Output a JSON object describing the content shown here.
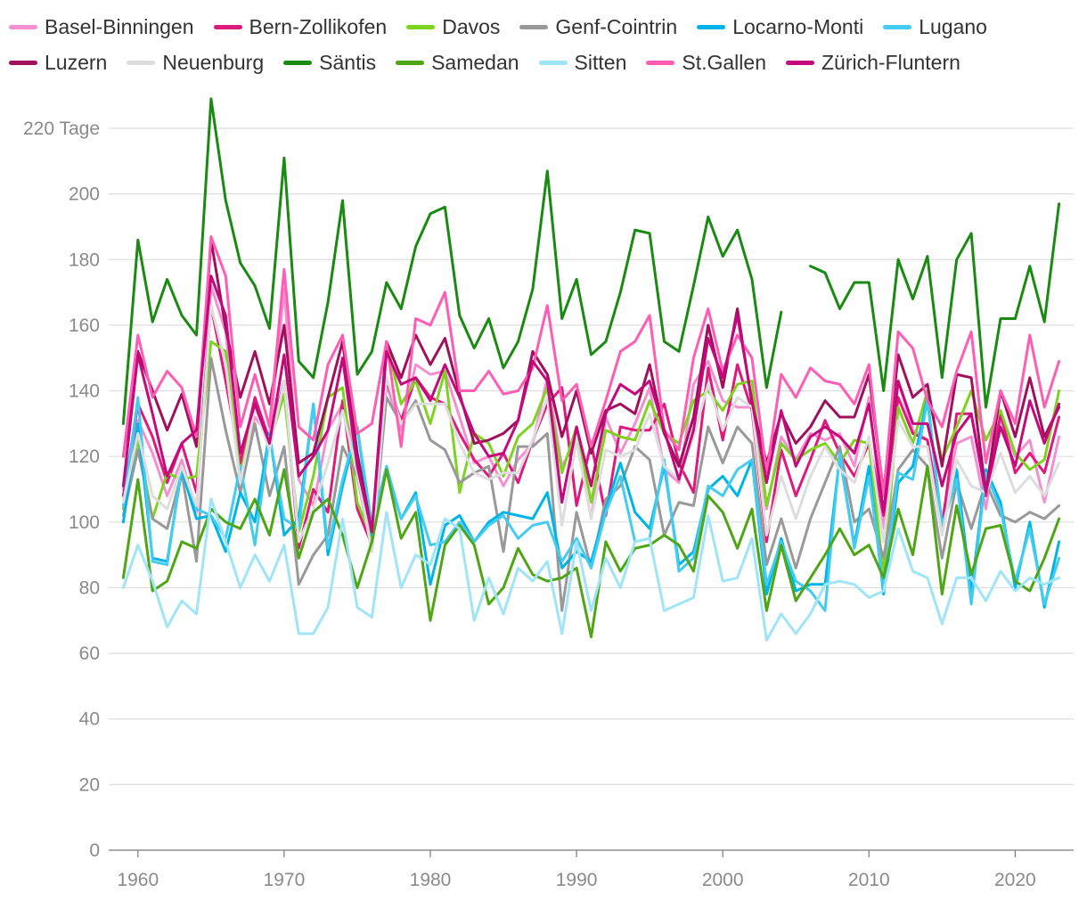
{
  "colors": {
    "grid": "#dddddd",
    "axis": "#7a7a7a",
    "tick_text": "#8a8a8a"
  },
  "chart_data": {
    "type": "line",
    "y_unit": "Tage",
    "ylim": [
      0,
      220
    ],
    "xlim": [
      1958,
      2024
    ],
    "y_ticks": [
      0,
      20,
      40,
      60,
      80,
      100,
      120,
      140,
      160,
      180,
      200,
      220
    ],
    "y_tick_labels": [
      "0",
      "20",
      "40",
      "60",
      "80",
      "100",
      "120",
      "140",
      "160",
      "180",
      "200",
      "220 Tage"
    ],
    "x_ticks": [
      1960,
      1970,
      1980,
      1990,
      2000,
      2010,
      2020
    ],
    "x_tick_labels": [
      "1960",
      "1970",
      "1980",
      "1990",
      "2000",
      "2010",
      "2020"
    ],
    "grid": "horizontal",
    "legend_position": "top",
    "legend_rows": [
      [
        0,
        1,
        2,
        3,
        4,
        5
      ],
      [
        6,
        7,
        8,
        9,
        10,
        11,
        12
      ]
    ],
    "x": [
      1959,
      1960,
      1961,
      1962,
      1963,
      1964,
      1965,
      1966,
      1967,
      1968,
      1969,
      1970,
      1971,
      1972,
      1973,
      1974,
      1975,
      1976,
      1977,
      1978,
      1979,
      1980,
      1981,
      1982,
      1983,
      1984,
      1985,
      1986,
      1987,
      1988,
      1989,
      1990,
      1991,
      1992,
      1993,
      1994,
      1995,
      1996,
      1997,
      1998,
      1999,
      2000,
      2001,
      2002,
      2003,
      2004,
      2005,
      2006,
      2007,
      2008,
      2009,
      2010,
      2011,
      2012,
      2013,
      2014,
      2015,
      2016,
      2017,
      2018,
      2019,
      2020,
      2021,
      2022,
      2023
    ],
    "series": [
      {
        "name": "Basel-Binningen",
        "color": "#f48fd1",
        "values": [
          110,
          131,
          121,
          108,
          119,
          103,
          172,
          158,
          116,
          132,
          126,
          171,
          113,
          105,
          128,
          136,
          119,
          93,
          142,
          128,
          148,
          145,
          146,
          132,
          118,
          120,
          111,
          119,
          124,
          144,
          117,
          125,
          101,
          132,
          121,
          130,
          141,
          116,
          112,
          142,
          149,
          137,
          135,
          135,
          104,
          126,
          119,
          127,
          125,
          127,
          117,
          138,
          98,
          143,
          128,
          125,
          101,
          124,
          126,
          104,
          132,
          120,
          125,
          106,
          126
        ]
      },
      {
        "name": "Bern-Zollikofen",
        "color": "#e0197d",
        "values": [
          108,
          136,
          126,
          112,
          124,
          109,
          166,
          143,
          118,
          138,
          125,
          143,
          92,
          110,
          103,
          137,
          104,
          93,
          143,
          131,
          144,
          138,
          136,
          127,
          119,
          114,
          121,
          112,
          125,
          136,
          141,
          105,
          124,
          102,
          129,
          128,
          128,
          136,
          118,
          109,
          147,
          125,
          148,
          134,
          94,
          122,
          108,
          119,
          131,
          121,
          114,
          124,
          102,
          138,
          127,
          125,
          98,
          133,
          133,
          108,
          133,
          115,
          121,
          115,
          132
        ]
      },
      {
        "name": "Davos",
        "color": "#7ed321",
        "values": [
          104,
          125,
          101,
          115,
          113,
          114,
          155,
          152,
          114,
          135,
          124,
          139,
          97,
          114,
          138,
          141,
          106,
          95,
          155,
          136,
          143,
          130,
          146,
          109,
          127,
          124,
          114,
          126,
          130,
          141,
          115,
          129,
          106,
          128,
          126,
          125,
          137,
          127,
          124,
          137,
          140,
          134,
          142,
          143,
          105,
          124,
          119,
          122,
          124,
          118,
          125,
          124,
          84,
          135,
          124,
          140,
          119,
          129,
          140,
          125,
          134,
          121,
          116,
          119,
          140
        ]
      },
      {
        "name": "Genf-Cointrin",
        "color": "#999999",
        "values": [
          102,
          122,
          101,
          98,
          115,
          88,
          150,
          128,
          109,
          130,
          108,
          123,
          81,
          90,
          96,
          123,
          114,
          91,
          138,
          130,
          137,
          125,
          122,
          112,
          115,
          117,
          91,
          123,
          123,
          127,
          73,
          103,
          86,
          107,
          111,
          123,
          119,
          96,
          106,
          105,
          129,
          118,
          129,
          124,
          87,
          101,
          86,
          101,
          112,
          123,
          100,
          104,
          89,
          116,
          122,
          117,
          89,
          112,
          98,
          112,
          102,
          100,
          103,
          101,
          105
        ]
      },
      {
        "name": "Locarno-Monti",
        "color": "#00b4e8",
        "values": [
          100,
          130,
          89,
          88,
          116,
          101,
          102,
          91,
          109,
          100,
          127,
          96,
          101,
          136,
          90,
          111,
          129,
          96,
          116,
          101,
          109,
          81,
          99,
          102,
          94,
          100,
          103,
          102,
          101,
          109,
          86,
          91,
          88,
          104,
          118,
          103,
          98,
          117,
          87,
          91,
          110,
          114,
          108,
          119,
          78,
          95,
          79,
          81,
          81,
          120,
          93,
          117,
          78,
          112,
          117,
          138,
          98,
          116,
          78,
          116,
          106,
          80,
          100,
          74,
          94
        ]
      },
      {
        "name": "Lugano",
        "color": "#44ccf0",
        "values": [
          105,
          138,
          88,
          87,
          117,
          104,
          102,
          95,
          117,
          93,
          126,
          101,
          98,
          136,
          92,
          113,
          129,
          99,
          117,
          101,
          108,
          93,
          94,
          100,
          94,
          99,
          102,
          95,
          99,
          100,
          88,
          95,
          86,
          103,
          114,
          94,
          95,
          119,
          85,
          89,
          111,
          108,
          116,
          119,
          81,
          94,
          82,
          79,
          73,
          121,
          92,
          114,
          80,
          115,
          113,
          137,
          99,
          113,
          75,
          115,
          104,
          82,
          98,
          75,
          89
        ]
      },
      {
        "name": "Luzern",
        "color": "#a0105c",
        "values": [
          120,
          152,
          140,
          128,
          139,
          123,
          186,
          159,
          138,
          152,
          136,
          160,
          118,
          121,
          138,
          155,
          121,
          97,
          155,
          144,
          157,
          148,
          156,
          139,
          124,
          125,
          127,
          131,
          152,
          145,
          126,
          140,
          121,
          134,
          136,
          133,
          148,
          127,
          117,
          132,
          160,
          141,
          165,
          136,
          118,
          133,
          124,
          129,
          137,
          132,
          132,
          145,
          109,
          151,
          138,
          142,
          117,
          145,
          144,
          109,
          140,
          126,
          144,
          126,
          135
        ]
      },
      {
        "name": "Neuenburg",
        "color": "#dddddd",
        "values": [
          106,
          127,
          108,
          104,
          117,
          105,
          166,
          148,
          112,
          135,
          122,
          143,
          94,
          104,
          118,
          134,
          115,
          91,
          144,
          130,
          136,
          136,
          136,
          124,
          115,
          113,
          115,
          115,
          125,
          138,
          99,
          125,
          101,
          122,
          120,
          122,
          133,
          117,
          113,
          126,
          142,
          128,
          138,
          135,
          96,
          114,
          101,
          114,
          123,
          116,
          112,
          126,
          94,
          131,
          123,
          123,
          96,
          119,
          111,
          109,
          121,
          109,
          114,
          108,
          118
        ]
      },
      {
        "name": "Säntis",
        "color": "#1a8a12",
        "values": [
          130,
          186,
          161,
          174,
          163,
          157,
          229,
          198,
          179,
          172,
          159,
          211,
          149,
          144,
          167,
          198,
          145,
          152,
          173,
          165,
          184,
          194,
          196,
          163,
          153,
          162,
          147,
          155,
          171,
          207,
          162,
          174,
          151,
          155,
          170,
          189,
          188,
          155,
          152,
          172,
          193,
          181,
          189,
          174,
          141,
          164,
          null,
          178,
          176,
          165,
          173,
          173,
          140,
          180,
          168,
          181,
          144,
          180,
          188,
          135,
          162,
          162,
          178,
          161,
          197
        ]
      },
      {
        "name": "Samedan",
        "color": "#4ea614",
        "values": [
          83,
          113,
          79,
          82,
          94,
          92,
          104,
          100,
          98,
          107,
          96,
          116,
          89,
          103,
          107,
          96,
          80,
          94,
          116,
          95,
          103,
          70,
          93,
          99,
          93,
          75,
          80,
          92,
          84,
          82,
          83,
          86,
          65,
          94,
          85,
          92,
          93,
          96,
          93,
          85,
          108,
          103,
          92,
          104,
          73,
          93,
          76,
          83,
          90,
          98,
          90,
          93,
          83,
          104,
          90,
          117,
          78,
          105,
          84,
          98,
          99,
          82,
          79,
          89,
          101
        ]
      },
      {
        "name": "Sitten",
        "color": "#9fe4f7",
        "values": [
          80,
          93,
          82,
          68,
          76,
          72,
          107,
          94,
          80,
          90,
          82,
          93,
          66,
          66,
          74,
          101,
          74,
          71,
          103,
          80,
          90,
          87,
          101,
          98,
          70,
          83,
          72,
          86,
          82,
          88,
          66,
          94,
          73,
          89,
          80,
          94,
          95,
          73,
          75,
          77,
          102,
          82,
          83,
          95,
          64,
          72,
          66,
          72,
          81,
          82,
          81,
          77,
          79,
          98,
          85,
          83,
          69,
          83,
          83,
          76,
          85,
          79,
          83,
          81,
          83
        ]
      },
      {
        "name": "St.Gallen",
        "color": "#ff5cb4",
        "values": [
          120,
          157,
          138,
          146,
          141,
          126,
          187,
          175,
          129,
          145,
          129,
          177,
          129,
          125,
          148,
          157,
          127,
          130,
          155,
          123,
          162,
          160,
          170,
          140,
          140,
          146,
          139,
          140,
          147,
          166,
          137,
          142,
          123,
          137,
          152,
          155,
          163,
          128,
          122,
          150,
          165,
          146,
          157,
          150,
          115,
          145,
          138,
          147,
          143,
          142,
          136,
          148,
          108,
          158,
          153,
          137,
          129,
          146,
          158,
          118,
          140,
          130,
          157,
          135,
          149
        ]
      },
      {
        "name": "Zürich-Fluntern",
        "color": "#c4097c",
        "values": [
          111,
          151,
          133,
          114,
          124,
          128,
          175,
          163,
          121,
          136,
          124,
          151,
          114,
          120,
          128,
          150,
          117,
          97,
          152,
          142,
          144,
          137,
          148,
          138,
          127,
          120,
          121,
          131,
          149,
          143,
          106,
          129,
          111,
          133,
          142,
          139,
          143,
          128,
          113,
          128,
          156,
          144,
          163,
          137,
          112,
          134,
          117,
          126,
          129,
          126,
          121,
          136,
          103,
          143,
          130,
          130,
          111,
          127,
          133,
          109,
          129,
          117,
          137,
          124,
          136
        ]
      }
    ]
  }
}
